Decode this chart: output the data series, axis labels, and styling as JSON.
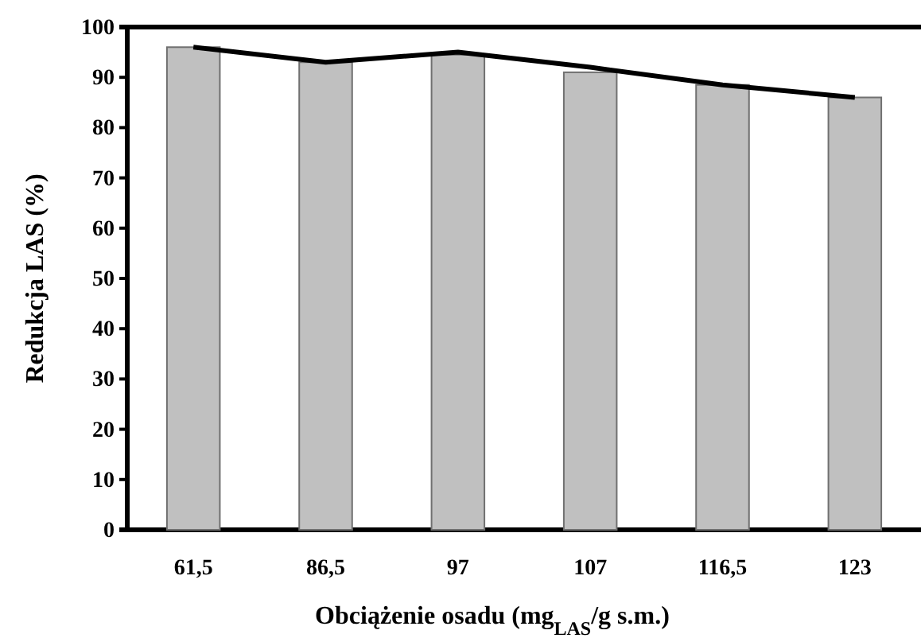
{
  "chart_data": {
    "type": "bar",
    "xlabel": "Obciążenie osadu (mg$_{LAS}$/g s.m.)",
    "ylabel": "Redukcja LAS (%)",
    "categories": [
      "61,5",
      "86,5",
      "97",
      "107",
      "116,5",
      "123"
    ],
    "series": [
      {
        "color": "#c0c0c0",
        "values": [
          96,
          93,
          94.5,
          91,
          88.5,
          86
        ]
      },
      {
        "type": "line",
        "color": "#000000",
        "values": [
          96,
          93,
          95,
          92,
          88.5,
          86
        ]
      }
    ],
    "ylim": [
      0,
      100
    ],
    "yticks": [
      0,
      10,
      20,
      30,
      40,
      50,
      60,
      70,
      80,
      90,
      100
    ],
    "grid": false,
    "marker": "none",
    "line_style": "solid"
  }
}
